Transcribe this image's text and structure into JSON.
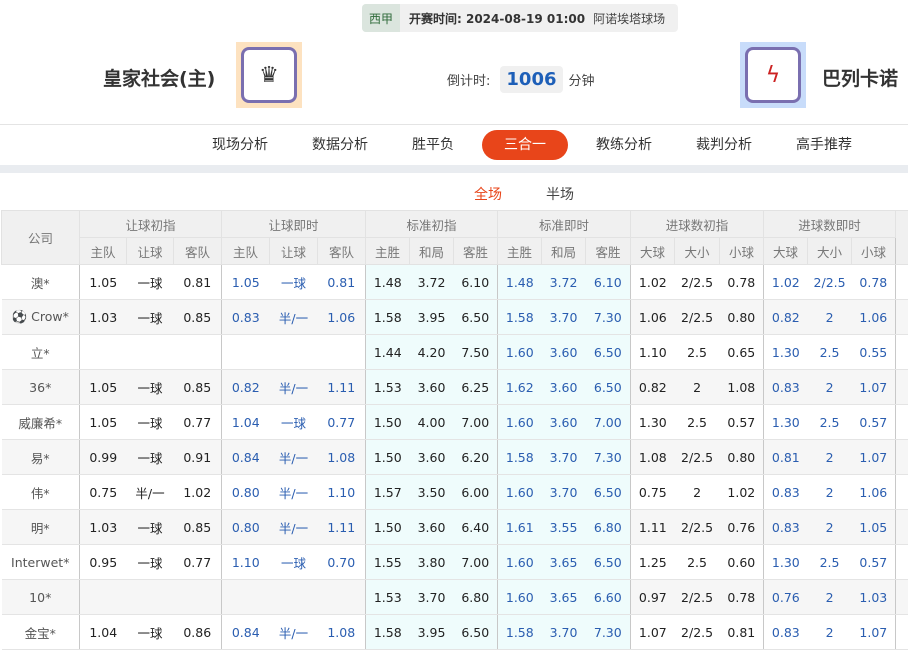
{
  "match": {
    "league": "西甲",
    "time_label": "开赛时间: 2024-08-19 01:00",
    "stadium": "阿诺埃塔球场",
    "home": "皇家社会(主)",
    "away": "巴列卡诺",
    "countdown_label": "倒计时:",
    "countdown": "1006",
    "countdown_unit": "分钟"
  },
  "nav": [
    "现场分析",
    "数据分析",
    "胜平负",
    "三合一",
    "教练分析",
    "裁判分析",
    "高手推荐"
  ],
  "nav_active": 3,
  "subtabs": [
    "全场",
    "半场"
  ],
  "accent": "#e8451a",
  "table": {
    "company_header": "公司",
    "groups": [
      "让球初指",
      "让球即时",
      "标准初指",
      "标准即时",
      "进球数初指",
      "进球数即时"
    ],
    "subheaders": [
      "主队",
      "让球",
      "客队",
      "主队",
      "让球",
      "客队",
      "主胜",
      "和局",
      "客胜",
      "主胜",
      "和局",
      "客胜",
      "大球",
      "大小",
      "小球",
      "大球",
      "大小",
      "小球"
    ],
    "rows": [
      [
        "澳*",
        "1.05",
        "一球",
        "0.81",
        "1.05",
        "一球",
        "0.81",
        "1.48",
        "3.72",
        "6.10",
        "1.48",
        "3.72",
        "6.10",
        "1.02",
        "2/2.5",
        "0.78",
        "1.02",
        "2/2.5",
        "0.78"
      ],
      [
        "⚽ Crow*",
        "1.03",
        "一球",
        "0.85",
        "0.83",
        "半/一",
        "1.06",
        "1.58",
        "3.95",
        "6.50",
        "1.58",
        "3.70",
        "7.30",
        "1.06",
        "2/2.5",
        "0.80",
        "0.82",
        "2",
        "1.06"
      ],
      [
        "立*",
        "",
        "",
        "",
        "",
        "",
        "",
        "1.44",
        "4.20",
        "7.50",
        "1.60",
        "3.60",
        "6.50",
        "1.10",
        "2.5",
        "0.65",
        "1.30",
        "2.5",
        "0.55"
      ],
      [
        "36*",
        "1.05",
        "一球",
        "0.85",
        "0.82",
        "半/一",
        "1.11",
        "1.53",
        "3.60",
        "6.25",
        "1.62",
        "3.60",
        "6.50",
        "0.82",
        "2",
        "1.08",
        "0.83",
        "2",
        "1.07"
      ],
      [
        "威廉希*",
        "1.05",
        "一球",
        "0.77",
        "1.04",
        "一球",
        "0.77",
        "1.50",
        "4.00",
        "7.00",
        "1.60",
        "3.60",
        "7.00",
        "1.30",
        "2.5",
        "0.57",
        "1.30",
        "2.5",
        "0.57"
      ],
      [
        "易*",
        "0.99",
        "一球",
        "0.91",
        "0.84",
        "半/一",
        "1.08",
        "1.50",
        "3.60",
        "6.20",
        "1.58",
        "3.70",
        "7.30",
        "1.08",
        "2/2.5",
        "0.80",
        "0.81",
        "2",
        "1.07"
      ],
      [
        "伟*",
        "0.75",
        "半/一",
        "1.02",
        "0.80",
        "半/一",
        "1.10",
        "1.57",
        "3.50",
        "6.00",
        "1.60",
        "3.70",
        "6.50",
        "0.75",
        "2",
        "1.02",
        "0.83",
        "2",
        "1.06"
      ],
      [
        "明*",
        "1.03",
        "一球",
        "0.85",
        "0.80",
        "半/一",
        "1.11",
        "1.50",
        "3.60",
        "6.40",
        "1.61",
        "3.55",
        "6.80",
        "1.11",
        "2/2.5",
        "0.76",
        "0.83",
        "2",
        "1.05"
      ],
      [
        "Interwet*",
        "0.95",
        "一球",
        "0.77",
        "1.10",
        "一球",
        "0.70",
        "1.55",
        "3.80",
        "7.00",
        "1.60",
        "3.65",
        "6.50",
        "1.25",
        "2.5",
        "0.60",
        "1.30",
        "2.5",
        "0.57"
      ],
      [
        "10*",
        "",
        "",
        "",
        "",
        "",
        "",
        "1.53",
        "3.70",
        "6.80",
        "1.60",
        "3.65",
        "6.60",
        "0.97",
        "2/2.5",
        "0.78",
        "0.76",
        "2",
        "1.03"
      ],
      [
        "金宝*",
        "1.04",
        "一球",
        "0.86",
        "0.84",
        "半/一",
        "1.08",
        "1.58",
        "3.95",
        "6.50",
        "1.58",
        "3.70",
        "7.30",
        "1.07",
        "2/2.5",
        "0.81",
        "0.83",
        "2",
        "1.07"
      ]
    ]
  }
}
